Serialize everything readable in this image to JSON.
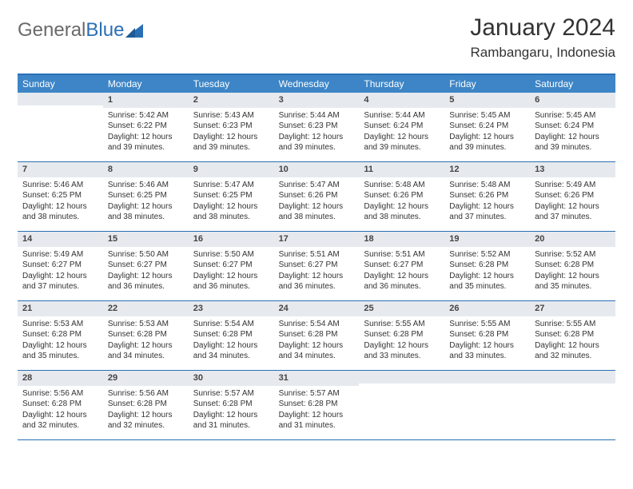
{
  "logo": {
    "text_general": "General",
    "text_blue": "Blue",
    "sail_color": "#2a6fb5",
    "gray": "#6a6a6a"
  },
  "title": "January 2024",
  "location": "Rambangaru, Indonesia",
  "colors": {
    "header_bg": "#3d85c6",
    "rule": "#2a6fb5",
    "daynum_bg": "#e6eaee",
    "text": "#333333",
    "white": "#ffffff"
  },
  "day_names": [
    "Sunday",
    "Monday",
    "Tuesday",
    "Wednesday",
    "Thursday",
    "Friday",
    "Saturday"
  ],
  "labels": {
    "sunrise": "Sunrise:",
    "sunset": "Sunset:",
    "daylight": "Daylight:"
  },
  "weeks": [
    [
      null,
      {
        "n": "1",
        "sr": "5:42 AM",
        "ss": "6:22 PM",
        "dl": "12 hours and 39 minutes."
      },
      {
        "n": "2",
        "sr": "5:43 AM",
        "ss": "6:23 PM",
        "dl": "12 hours and 39 minutes."
      },
      {
        "n": "3",
        "sr": "5:44 AM",
        "ss": "6:23 PM",
        "dl": "12 hours and 39 minutes."
      },
      {
        "n": "4",
        "sr": "5:44 AM",
        "ss": "6:24 PM",
        "dl": "12 hours and 39 minutes."
      },
      {
        "n": "5",
        "sr": "5:45 AM",
        "ss": "6:24 PM",
        "dl": "12 hours and 39 minutes."
      },
      {
        "n": "6",
        "sr": "5:45 AM",
        "ss": "6:24 PM",
        "dl": "12 hours and 39 minutes."
      }
    ],
    [
      {
        "n": "7",
        "sr": "5:46 AM",
        "ss": "6:25 PM",
        "dl": "12 hours and 38 minutes."
      },
      {
        "n": "8",
        "sr": "5:46 AM",
        "ss": "6:25 PM",
        "dl": "12 hours and 38 minutes."
      },
      {
        "n": "9",
        "sr": "5:47 AM",
        "ss": "6:25 PM",
        "dl": "12 hours and 38 minutes."
      },
      {
        "n": "10",
        "sr": "5:47 AM",
        "ss": "6:26 PM",
        "dl": "12 hours and 38 minutes."
      },
      {
        "n": "11",
        "sr": "5:48 AM",
        "ss": "6:26 PM",
        "dl": "12 hours and 38 minutes."
      },
      {
        "n": "12",
        "sr": "5:48 AM",
        "ss": "6:26 PM",
        "dl": "12 hours and 37 minutes."
      },
      {
        "n": "13",
        "sr": "5:49 AM",
        "ss": "6:26 PM",
        "dl": "12 hours and 37 minutes."
      }
    ],
    [
      {
        "n": "14",
        "sr": "5:49 AM",
        "ss": "6:27 PM",
        "dl": "12 hours and 37 minutes."
      },
      {
        "n": "15",
        "sr": "5:50 AM",
        "ss": "6:27 PM",
        "dl": "12 hours and 36 minutes."
      },
      {
        "n": "16",
        "sr": "5:50 AM",
        "ss": "6:27 PM",
        "dl": "12 hours and 36 minutes."
      },
      {
        "n": "17",
        "sr": "5:51 AM",
        "ss": "6:27 PM",
        "dl": "12 hours and 36 minutes."
      },
      {
        "n": "18",
        "sr": "5:51 AM",
        "ss": "6:27 PM",
        "dl": "12 hours and 36 minutes."
      },
      {
        "n": "19",
        "sr": "5:52 AM",
        "ss": "6:28 PM",
        "dl": "12 hours and 35 minutes."
      },
      {
        "n": "20",
        "sr": "5:52 AM",
        "ss": "6:28 PM",
        "dl": "12 hours and 35 minutes."
      }
    ],
    [
      {
        "n": "21",
        "sr": "5:53 AM",
        "ss": "6:28 PM",
        "dl": "12 hours and 35 minutes."
      },
      {
        "n": "22",
        "sr": "5:53 AM",
        "ss": "6:28 PM",
        "dl": "12 hours and 34 minutes."
      },
      {
        "n": "23",
        "sr": "5:54 AM",
        "ss": "6:28 PM",
        "dl": "12 hours and 34 minutes."
      },
      {
        "n": "24",
        "sr": "5:54 AM",
        "ss": "6:28 PM",
        "dl": "12 hours and 34 minutes."
      },
      {
        "n": "25",
        "sr": "5:55 AM",
        "ss": "6:28 PM",
        "dl": "12 hours and 33 minutes."
      },
      {
        "n": "26",
        "sr": "5:55 AM",
        "ss": "6:28 PM",
        "dl": "12 hours and 33 minutes."
      },
      {
        "n": "27",
        "sr": "5:55 AM",
        "ss": "6:28 PM",
        "dl": "12 hours and 32 minutes."
      }
    ],
    [
      {
        "n": "28",
        "sr": "5:56 AM",
        "ss": "6:28 PM",
        "dl": "12 hours and 32 minutes."
      },
      {
        "n": "29",
        "sr": "5:56 AM",
        "ss": "6:28 PM",
        "dl": "12 hours and 32 minutes."
      },
      {
        "n": "30",
        "sr": "5:57 AM",
        "ss": "6:28 PM",
        "dl": "12 hours and 31 minutes."
      },
      {
        "n": "31",
        "sr": "5:57 AM",
        "ss": "6:28 PM",
        "dl": "12 hours and 31 minutes."
      },
      null,
      null,
      null
    ]
  ]
}
